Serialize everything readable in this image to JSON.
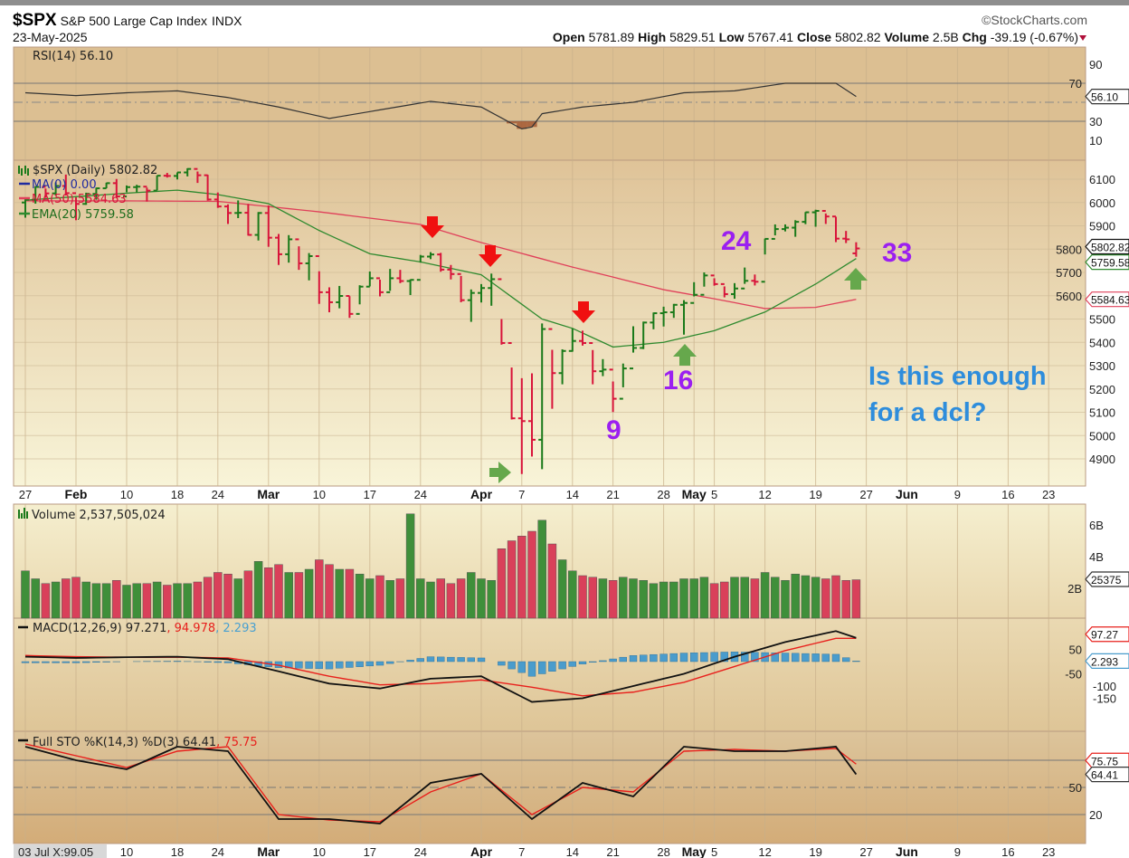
{
  "header": {
    "symbol": "$SPX",
    "name": "S&P 500 Large Cap Index",
    "exchange": "INDX",
    "date": "23-May-2025",
    "brand": "©StockCharts.com",
    "open_label": "Open",
    "open": "5781.89",
    "high_label": "High",
    "high": "5829.51",
    "low_label": "Low",
    "low": "5767.41",
    "close_label": "Close",
    "close": "5802.82",
    "volume_label": "Volume",
    "volume": "2.5B",
    "chg_label": "Chg",
    "chg": "-39.19 (-0.67%)"
  },
  "legends": {
    "rsi": "RSI(14) 56.10",
    "price": "$SPX (Daily) 5802.82",
    "ma0": "MA(0) 0.00",
    "ma50": "MA(50) 5584.63",
    "ema20": "EMA(20) 5759.58",
    "volume": "Volume 2,537,505,024",
    "macd": "MACD(12,26,9) 97.271",
    "macd_signal": ", 94.978",
    "macd_hist": ", 2.293",
    "sto": "Full STO %K(14,3) %D(3) 64.41",
    "sto_d": ", 75.75",
    "bottom_readout": "03 Jul X:99.05"
  },
  "annotations": {
    "n24": "24",
    "n33": "33",
    "n16": "16",
    "n9": "9",
    "question_line1": "Is this enough",
    "question_line2": "for a dcl?"
  },
  "colors": {
    "up": "#1a7a1a",
    "down": "#d8143a",
    "ema": "#2f8a2f",
    "ma50": "#e0405a",
    "annotation": "#9b1ff0",
    "question": "#2e8ddc"
  },
  "chart_data": {
    "type": "ohlc",
    "title": "$SPX S&P 500 Large Cap Index (Daily)",
    "x_ticks": [
      {
        "t": "27",
        "i": 0
      },
      {
        "t": "Feb",
        "i": 5,
        "b": 1
      },
      {
        "t": "10",
        "i": 10
      },
      {
        "t": "18",
        "i": 15
      },
      {
        "t": "24",
        "i": 19
      },
      {
        "t": "Mar",
        "i": 24,
        "b": 1
      },
      {
        "t": "10",
        "i": 29
      },
      {
        "t": "17",
        "i": 34
      },
      {
        "t": "24",
        "i": 39
      },
      {
        "t": "Apr",
        "i": 45,
        "b": 1
      },
      {
        "t": "7",
        "i": 49
      },
      {
        "t": "14",
        "i": 54
      },
      {
        "t": "21",
        "i": 58
      },
      {
        "t": "28",
        "i": 63
      },
      {
        "t": "May",
        "i": 66,
        "b": 1
      },
      {
        "t": "5",
        "i": 68
      },
      {
        "t": "12",
        "i": 73
      },
      {
        "t": "19",
        "i": 78
      },
      {
        "t": "27",
        "i": 83
      },
      {
        "t": "Jun",
        "i": 87,
        "b": 1
      },
      {
        "t": "9",
        "i": 92
      },
      {
        "t": "16",
        "i": 97
      },
      {
        "t": "23",
        "i": 101
      }
    ],
    "price_ticks": [
      "6100",
      "6000",
      "5900",
      "5800",
      "5700",
      "5600",
      "5500",
      "5400",
      "5300",
      "5200",
      "5100",
      "5000",
      "4900"
    ],
    "price_ylim": [
      4820,
      6160
    ],
    "close": [
      6012,
      6067,
      6039,
      6071,
      6040,
      5994,
      6037,
      6061,
      6083,
      6026,
      6066,
      6068,
      6051,
      6115,
      6114,
      6129,
      6144,
      6117,
      6013,
      5983,
      5955,
      5956,
      5861,
      5955,
      5849,
      5778,
      5842,
      5739,
      5770,
      5615,
      5572,
      5599,
      5522,
      5639,
      5675,
      5615,
      5675,
      5663,
      5668,
      5768,
      5777,
      5712,
      5693,
      5581,
      5612,
      5633,
      5671,
      5397,
      5074,
      5062,
      4982,
      5457,
      5268,
      5363,
      5406,
      5397,
      5276,
      5283,
      5158,
      5288,
      5376,
      5485,
      5525,
      5529,
      5561,
      5569,
      5604,
      5687,
      5650,
      5607,
      5631,
      5664,
      5660,
      5844,
      5886,
      5892,
      5917,
      5958,
      5964,
      5940,
      5845,
      5842,
      5802.82
    ],
    "high": [
      6020,
      6070,
      6060,
      6086,
      6120,
      6022,
      6042,
      6064,
      6085,
      6101,
      6073,
      6076,
      6064,
      6116,
      6127,
      6129,
      6147,
      6133,
      6119,
      6043,
      5992,
      6009,
      5994,
      5959,
      5987,
      5865,
      5860,
      5812,
      5783,
      5705,
      5636,
      5642,
      5598,
      5645,
      5704,
      5669,
      5715,
      5711,
      5670,
      5775,
      5787,
      5784,
      5732,
      5685,
      5627,
      5650,
      5695,
      5500,
      5292,
      5246,
      5267,
      5481,
      5368,
      5370,
      5460,
      5450,
      5367,
      5328,
      5232,
      5309,
      5469,
      5489,
      5528,
      5553,
      5565,
      5581,
      5658,
      5700,
      5675,
      5640,
      5654,
      5721,
      5691,
      5845,
      5906,
      5906,
      5924,
      5959,
      5969,
      5953,
      5939,
      5878,
      5829.51
    ],
    "low": [
      5935,
      5995,
      6020,
      6030,
      6030,
      5924,
      5990,
      6012,
      6061,
      6020,
      6044,
      6042,
      6004,
      6052,
      6107,
      6099,
      6112,
      6084,
      6008,
      5977,
      5908,
      5933,
      5858,
      5837,
      5810,
      5732,
      5742,
      5711,
      5666,
      5565,
      5529,
      5546,
      5505,
      5563,
      5640,
      5597,
      5621,
      5654,
      5603,
      5742,
      5757,
      5703,
      5670,
      5572,
      5488,
      5571,
      5557,
      5390,
      5069,
      4835,
      4910,
      4856,
      5115,
      5220,
      5360,
      5386,
      5220,
      5255,
      5101,
      5207,
      5356,
      5371,
      5456,
      5468,
      5505,
      5433,
      5597,
      5639,
      5643,
      5593,
      5587,
      5651,
      5644,
      5777,
      5859,
      5876,
      5853,
      5907,
      5896,
      5908,
      5830,
      5826,
      5767.41
    ],
    "first_open": 6000,
    "last_open": 5781.89,
    "ema20_samples": {
      "i": [
        0,
        10,
        15,
        19,
        24,
        29,
        34,
        39,
        45,
        51,
        54,
        58,
        63,
        68,
        73,
        78,
        82
      ],
      "v": [
        6010,
        6040,
        6053,
        6034,
        5995,
        5880,
        5780,
        5745,
        5690,
        5500,
        5460,
        5380,
        5400,
        5450,
        5530,
        5650,
        5759.58
      ]
    },
    "ma50_samples": {
      "i": [
        0,
        10,
        19,
        29,
        39,
        45,
        54,
        63,
        68,
        73,
        78,
        82
      ],
      "v": [
        6007,
        6007,
        6005,
        5960,
        5906,
        5828,
        5723,
        5626,
        5587,
        5545,
        5550,
        5584.63
      ]
    },
    "volume_billions": [
      3.1,
      2.6,
      2.3,
      2.4,
      2.6,
      2.7,
      2.4,
      2.3,
      2.3,
      2.5,
      2.2,
      2.3,
      2.3,
      2.4,
      2.2,
      2.3,
      2.3,
      2.4,
      2.7,
      3.0,
      2.9,
      2.6,
      3.1,
      3.7,
      3.3,
      3.5,
      3.0,
      3.0,
      3.2,
      3.8,
      3.5,
      3.2,
      3.2,
      2.9,
      2.6,
      2.8,
      2.5,
      2.6,
      6.7,
      2.6,
      2.4,
      2.6,
      2.3,
      2.6,
      3.0,
      2.6,
      2.5,
      4.5,
      5.0,
      5.3,
      5.6,
      6.3,
      4.8,
      3.8,
      3.1,
      2.8,
      2.7,
      2.6,
      2.5,
      2.7,
      2.6,
      2.5,
      2.3,
      2.4,
      2.4,
      2.6,
      2.6,
      2.7,
      2.3,
      2.4,
      2.7,
      2.7,
      2.6,
      3.0,
      2.7,
      2.5,
      2.9,
      2.8,
      2.7,
      2.6,
      2.8,
      2.5,
      2.54
    ],
    "volume_ticks": [
      "6B",
      "4B",
      "2B"
    ],
    "volume_last_tag": "25375",
    "rsi": {
      "i": [
        0,
        5,
        10,
        15,
        20,
        25,
        30,
        35,
        40,
        45,
        49,
        50,
        51,
        55,
        60,
        65,
        70,
        75,
        80,
        82
      ],
      "v": [
        60,
        57,
        60,
        62,
        55,
        45,
        33,
        42,
        51,
        45,
        22,
        24,
        38,
        45,
        50,
        60,
        62,
        70,
        70,
        56.1
      ],
      "ticks": [
        "90",
        "70",
        "30",
        "10"
      ],
      "last": "56.10"
    },
    "macd": {
      "i": [
        0,
        5,
        10,
        15,
        20,
        25,
        30,
        35,
        40,
        45,
        50,
        55,
        60,
        65,
        70,
        75,
        80,
        82
      ],
      "line": [
        20,
        15,
        18,
        20,
        10,
        -40,
        -90,
        -110,
        -70,
        -60,
        -165,
        -150,
        -100,
        -50,
        20,
        80,
        125,
        97.27
      ],
      "signal": [
        25,
        20,
        18,
        18,
        15,
        -15,
        -60,
        -95,
        -90,
        -75,
        -105,
        -140,
        -125,
        -85,
        -20,
        45,
        95,
        94.98
      ],
      "ticks": [
        "50",
        "-50",
        "-100",
        "-150"
      ],
      "last_line": "97.27",
      "last_hist": "2.293"
    },
    "sto": {
      "i": [
        0,
        5,
        10,
        15,
        20,
        25,
        30,
        35,
        40,
        45,
        50,
        55,
        60,
        65,
        70,
        75,
        80,
        82
      ],
      "k": [
        95,
        80,
        70,
        95,
        90,
        15,
        15,
        10,
        55,
        65,
        15,
        55,
        40,
        95,
        90,
        90,
        95,
        64.41
      ],
      "d": [
        98,
        85,
        72,
        90,
        95,
        20,
        14,
        12,
        45,
        65,
        20,
        50,
        45,
        90,
        92,
        90,
        93,
        75.75
      ],
      "ticks": [
        "50",
        "20"
      ],
      "last_k": "64.41",
      "last_d": "75.75"
    }
  }
}
